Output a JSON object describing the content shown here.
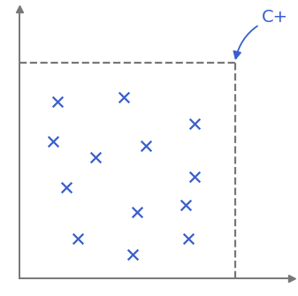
{
  "chart_data": {
    "type": "scatter",
    "x": [
      14.0,
      38.3,
      64.3,
      12.3,
      27.9,
      46.4,
      17.2,
      64.3,
      43.2,
      61.0,
      21.4,
      41.6,
      62.0
    ],
    "values": [
      65.6,
      67.2,
      57.4,
      50.8,
      44.9,
      49.2,
      33.8,
      37.7,
      24.6,
      27.2,
      14.8,
      8.9,
      14.8
    ],
    "color": "#3a5fcd",
    "marker": "x",
    "xlim": [
      0,
      100
    ],
    "ylim": [
      0,
      100
    ],
    "xticks": [],
    "yticks": [],
    "tick_labels": false,
    "grid": false,
    "bounds": [
      79,
      80
    ],
    "annotation": "C+"
  }
}
